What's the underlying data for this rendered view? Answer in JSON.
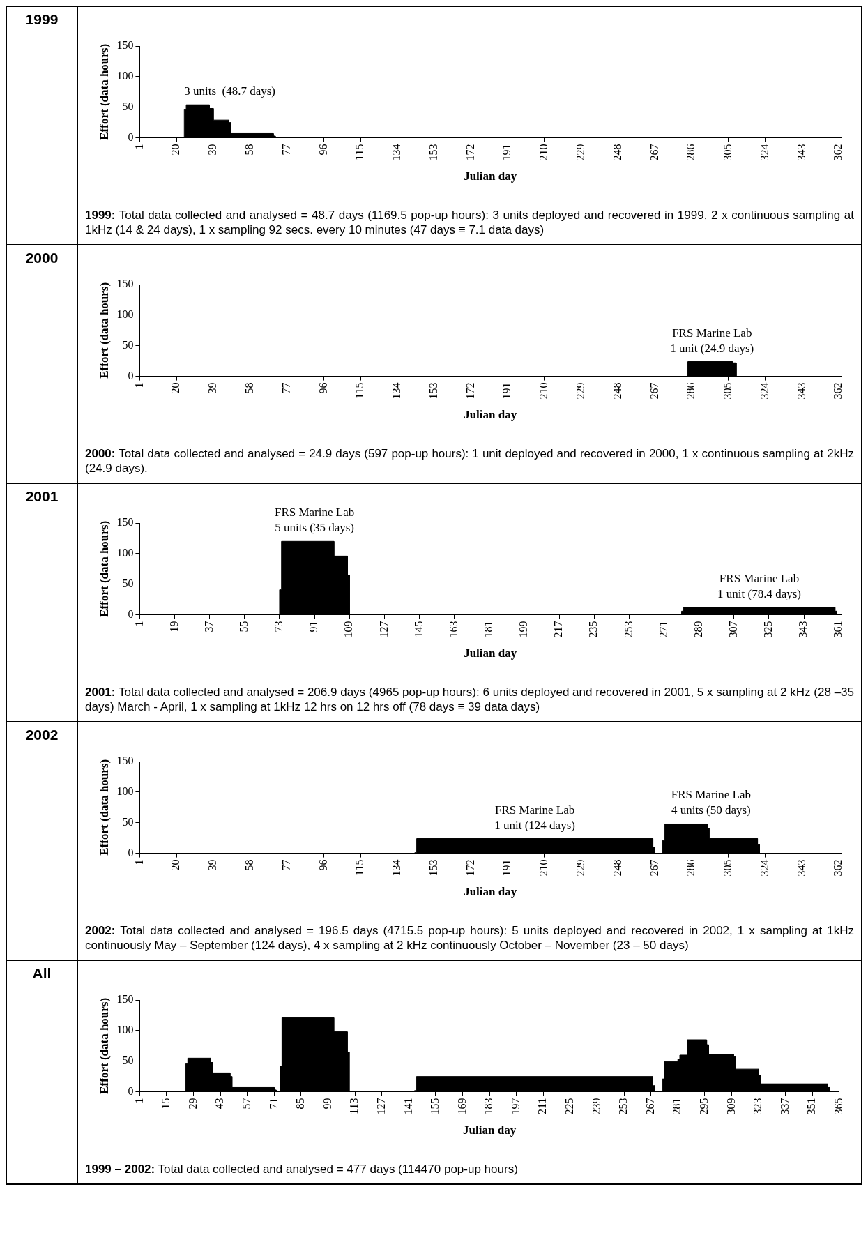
{
  "chart_data": [
    {
      "type": "area",
      "title": "1999",
      "xlabel": "Julian day",
      "ylabel": "Effort (data hours)",
      "xlim": [
        1,
        363
      ],
      "xticks": [
        1,
        20,
        39,
        58,
        77,
        96,
        115,
        134,
        153,
        172,
        191,
        210,
        229,
        248,
        267,
        286,
        305,
        324,
        343,
        362
      ],
      "ylim": [
        0,
        150
      ],
      "yticks": [
        0,
        50,
        100,
        150
      ],
      "legend": false,
      "series": [
        {
          "color": "#000000",
          "x": [
            24,
            24,
            25,
            25,
            37,
            37,
            39,
            39,
            47,
            47,
            48,
            48,
            70,
            70,
            71,
            71
          ],
          "values": [
            0,
            46,
            46,
            54,
            54,
            48,
            48,
            29,
            29,
            25,
            25,
            7,
            7,
            3,
            3,
            0
          ]
        }
      ],
      "annotations": [
        "3 units  (48.7 days)",
        "1999: Total data collected and analysed = 48.7 days (1169.5 pop-up hours): 3 units deployed and recovered in 1999, 2 x continuous sampling at 1kHz (14 & 24 days), 1 x sampling 92 secs. every 10 minutes (47 days ≡ 7.1 data days)"
      ]
    },
    {
      "type": "area",
      "title": "2000",
      "xlabel": "Julian day",
      "ylabel": "Effort (data hours)",
      "xlim": [
        1,
        363
      ],
      "xticks": [
        1,
        20,
        39,
        58,
        77,
        96,
        115,
        134,
        153,
        172,
        191,
        210,
        229,
        248,
        267,
        286,
        305,
        324,
        343,
        362
      ],
      "ylim": [
        0,
        150
      ],
      "yticks": [
        0,
        50,
        100,
        150
      ],
      "legend": false,
      "series": [
        {
          "color": "#000000",
          "x": [
            284,
            284,
            307,
            307,
            309,
            309
          ],
          "values": [
            0,
            24,
            24,
            22,
            22,
            0
          ]
        }
      ],
      "annotations": [
        "FRS Marine Lab\n1 unit (24.9 days)",
        "2000: Total data collected and analysed = 24.9 days (597 pop-up hours): 1 unit deployed and recovered in 2000, 1 x continuous sampling at 2kHz (24.9 days)."
      ]
    },
    {
      "type": "area",
      "title": "2001",
      "xlabel": "Julian day",
      "ylabel": "Effort (data hours)",
      "xlim": [
        1,
        362
      ],
      "xticks": [
        1,
        19,
        37,
        55,
        73,
        91,
        109,
        127,
        145,
        163,
        181,
        199,
        217,
        235,
        253,
        271,
        289,
        307,
        325,
        343,
        361
      ],
      "ylim": [
        0,
        150
      ],
      "yticks": [
        0,
        50,
        100,
        150
      ],
      "legend": false,
      "series": [
        {
          "color": "#000000",
          "x": [
            73,
            73,
            74,
            74,
            101,
            101,
            108,
            108,
            109,
            109,
            280,
            280,
            281,
            281,
            359,
            359,
            360,
            360
          ],
          "values": [
            0,
            41,
            41,
            120,
            120,
            96,
            96,
            65,
            65,
            0,
            0,
            6,
            6,
            12,
            12,
            6,
            6,
            0
          ]
        }
      ],
      "annotations": [
        "FRS Marine Lab\n5 units (35 days)",
        "FRS Marine Lab\n1 unit (78.4 days)",
        "2001: Total data collected and analysed = 206.9 days (4965 pop-up hours): 6 units deployed and recovered in 2001, 5 x sampling at 2 kHz (28 –35 days) March - April, 1 x sampling at 1kHz 12 hrs on 12 hrs off (78 days ≡ 39 data days)"
      ]
    },
    {
      "type": "area",
      "title": "2002",
      "xlabel": "Julian day",
      "ylabel": "Effort (data hours)",
      "xlim": [
        1,
        363
      ],
      "xticks": [
        1,
        20,
        39,
        58,
        77,
        96,
        115,
        134,
        153,
        172,
        191,
        210,
        229,
        248,
        267,
        286,
        305,
        324,
        343,
        362
      ],
      "ylim": [
        0,
        150
      ],
      "yticks": [
        0,
        50,
        100,
        150
      ],
      "legend": false,
      "series": [
        {
          "color": "#000000",
          "x": [
            143,
            143,
            144,
            144,
            266,
            266,
            267,
            267,
            271,
            271,
            272,
            272,
            294,
            294,
            295,
            295,
            320,
            320,
            321,
            321
          ],
          "values": [
            0,
            1,
            1,
            24,
            24,
            10,
            10,
            0,
            0,
            21,
            21,
            48,
            48,
            41,
            41,
            24,
            24,
            14,
            14,
            0
          ]
        }
      ],
      "annotations": [
        "FRS Marine Lab\n1 unit (124 days)",
        "FRS Marine Lab\n4 units (50 days)",
        "2002: Total data collected and analysed = 196.5 days (4715.5 pop-up hours): 5 units deployed and recovered in 2002, 1 x sampling at 1kHz continuously May – September (124 days), 4 x sampling at 2 kHz continuously October – November (23 – 50 days)"
      ]
    },
    {
      "type": "area",
      "title": "All",
      "xlabel": "Julian day",
      "ylabel": "Effort (data hours)",
      "xlim": [
        1,
        365
      ],
      "xticks": [
        1,
        15,
        29,
        43,
        57,
        71,
        85,
        99,
        113,
        127,
        141,
        155,
        169,
        183,
        197,
        211,
        225,
        239,
        253,
        267,
        281,
        295,
        309,
        323,
        337,
        351,
        365
      ],
      "ylim": [
        0,
        150
      ],
      "yticks": [
        0,
        50,
        100,
        150
      ],
      "legend": false,
      "series": [
        {
          "color": "#000000",
          "x": [
            25,
            25,
            26,
            26,
            38,
            38,
            39,
            39,
            48,
            48,
            49,
            49,
            71,
            71,
            72,
            72,
            74,
            74,
            75,
            75,
            102,
            102,
            109,
            109,
            110,
            110,
            144,
            144,
            145,
            145,
            268,
            268,
            269,
            269,
            273,
            273,
            274,
            274,
            281,
            281,
            282,
            282,
            286,
            286,
            296,
            296,
            297,
            297,
            310,
            310,
            311,
            311,
            323,
            323,
            324,
            324,
            359,
            359,
            360,
            360
          ],
          "values": [
            0,
            46,
            46,
            55,
            55,
            48,
            48,
            31,
            31,
            25,
            25,
            7,
            7,
            3,
            3,
            0,
            0,
            42,
            42,
            121,
            121,
            98,
            98,
            65,
            65,
            0,
            0,
            2,
            2,
            25,
            25,
            10,
            10,
            0,
            0,
            21,
            21,
            49,
            49,
            53,
            53,
            60,
            60,
            85,
            85,
            77,
            77,
            61,
            61,
            57,
            57,
            37,
            37,
            27,
            27,
            13,
            13,
            7,
            7,
            0
          ]
        }
      ],
      "annotations": [
        "1999 – 2002: Total data collected and analysed = 477 days (114470 pop-up hours)"
      ]
    }
  ]
}
